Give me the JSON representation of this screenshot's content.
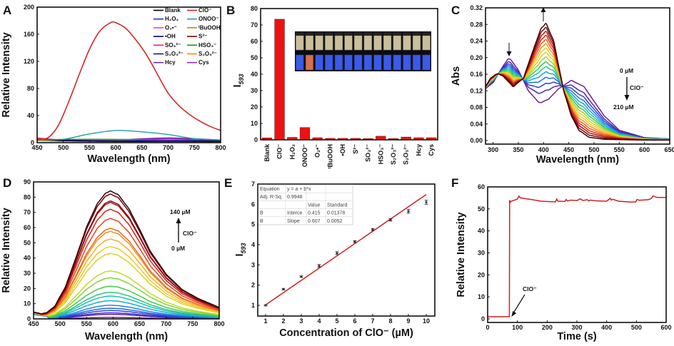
{
  "figure": {
    "panels": [
      "A",
      "B",
      "C",
      "D",
      "E",
      "F"
    ]
  },
  "chart_data": [
    {
      "panel": "A",
      "type": "line",
      "xlabel": "Wavelength (nm)",
      "ylabel": "Relative Intensity",
      "xlim": [
        450,
        800
      ],
      "ylim": [
        0,
        200
      ],
      "xticks": [
        450,
        500,
        550,
        600,
        650,
        700,
        750,
        800
      ],
      "yticks": [
        0,
        40,
        80,
        120,
        160,
        200
      ],
      "legend_position": "top-right",
      "legend": [
        "Blank",
        "ClO⁻",
        "H₂O₂",
        "ONOO⁻",
        "O₂•⁻",
        "ᵗBuOOH",
        "•OH",
        "S²⁻",
        "SO₃²⁻",
        "HSO₃⁻",
        "S₂O₃²⁻",
        "S₂O₅²⁻",
        "Hcy",
        "Cys"
      ],
      "series": [
        {
          "name": "ClO⁻",
          "color": "#d62728",
          "x": [
            450,
            470,
            490,
            510,
            530,
            550,
            570,
            590,
            600,
            620,
            640,
            660,
            680,
            700,
            720,
            740,
            760,
            780,
            800
          ],
          "values": [
            6,
            7,
            25,
            60,
            100,
            138,
            165,
            177,
            177,
            168,
            150,
            128,
            100,
            73,
            55,
            42,
            32,
            24,
            18
          ]
        },
        {
          "name": "ONOO⁻",
          "color": "#1f9e9e",
          "x": [
            450,
            500,
            550,
            600,
            650,
            700,
            750,
            800
          ],
          "values": [
            4,
            5,
            13,
            18,
            16,
            12,
            6,
            4
          ]
        },
        {
          "name": "Blank",
          "color": "#000000",
          "x": [
            450,
            500,
            600,
            700,
            800
          ],
          "values": [
            5,
            3,
            2,
            2,
            2
          ]
        },
        {
          "name": "H₂O₂",
          "color": "#2233cc",
          "x": [
            450,
            500,
            600,
            700,
            800
          ],
          "values": [
            6,
            4,
            3,
            4,
            3
          ]
        },
        {
          "name": "O₂•⁻",
          "color": "#ee33ee",
          "x": [
            450,
            500,
            600,
            700,
            800
          ],
          "values": [
            7,
            4,
            3,
            3,
            3
          ]
        },
        {
          "name": "ᵗBuOOH",
          "color": "#999900",
          "x": [
            450,
            500,
            600,
            700,
            800
          ],
          "values": [
            4,
            4,
            4,
            4,
            3
          ]
        },
        {
          "name": "•OH",
          "color": "#000066",
          "x": [
            450,
            500,
            600,
            700,
            800
          ],
          "values": [
            5,
            4,
            3,
            3,
            3
          ]
        },
        {
          "name": "S²⁻",
          "color": "#880000",
          "x": [
            450,
            500,
            600,
            700,
            800
          ],
          "values": [
            5,
            3,
            2,
            2,
            2
          ]
        },
        {
          "name": "SO₃²⁻",
          "color": "#ff1493",
          "x": [
            450,
            500,
            600,
            700,
            800
          ],
          "values": [
            6,
            3,
            3,
            4,
            3
          ]
        },
        {
          "name": "HSO₃⁻",
          "color": "#228b22",
          "x": [
            450,
            500,
            600,
            700,
            800
          ],
          "values": [
            4,
            5,
            5,
            4,
            3
          ]
        },
        {
          "name": "S₂O₃²⁻",
          "color": "#1111aa",
          "x": [
            450,
            500,
            600,
            700,
            800
          ],
          "values": [
            5,
            3,
            3,
            3,
            3
          ]
        },
        {
          "name": "S₂O₅²⁻",
          "color": "#ff8c00",
          "x": [
            450,
            500,
            600,
            700,
            800
          ],
          "values": [
            3,
            2,
            2,
            2,
            1
          ]
        },
        {
          "name": "Hcy",
          "color": "#7b2b9b",
          "x": [
            450,
            500,
            600,
            700,
            800
          ],
          "values": [
            6,
            3,
            4,
            7,
            4
          ]
        },
        {
          "name": "Cys",
          "color": "#9932cc",
          "x": [
            450,
            500,
            600,
            700,
            800
          ],
          "values": [
            7,
            4,
            4,
            6,
            4
          ]
        }
      ]
    },
    {
      "panel": "B",
      "type": "bar",
      "ylabel": "I593",
      "ylabel_main": "I",
      "ylabel_sub": "593",
      "ylim": [
        0,
        80
      ],
      "yticks": [
        0,
        10,
        20,
        30,
        40,
        50,
        60,
        70,
        80
      ],
      "categories": [
        "Blank",
        "ClO⁻",
        "H₂O₂",
        "ONOO⁻",
        "O₂•⁻",
        "ᵗBuOOH",
        "•OH",
        "S²⁻",
        "SO₃²⁻",
        "HSO₃⁻",
        "S₂O₃²⁻",
        "S₂O₅²⁻",
        "Hcy",
        "Cys"
      ],
      "values": [
        1.2,
        73.5,
        1.5,
        7.5,
        1.3,
        0.9,
        0.9,
        0.9,
        0.8,
        2.2,
        0.8,
        1.7,
        1.3,
        1.3
      ],
      "bar_color": "#ee1111",
      "inset": "photo of 14 vials under daylight (top) and UV lamp (bottom); ClO⁻ vial fluoresces orange"
    },
    {
      "panel": "C",
      "type": "line",
      "xlabel": "Wavelength (nm)",
      "ylabel": "Abs",
      "xlim": [
        285,
        650
      ],
      "ylim": [
        0,
        0.32
      ],
      "xticks": [
        300,
        350,
        400,
        450,
        500,
        550,
        600,
        650
      ],
      "yticks": [
        "0.00",
        "0.04",
        "0.08",
        "0.12",
        "0.16",
        "0.20",
        "0.24",
        "0.28",
        "0.32"
      ],
      "series_count": 16,
      "series_description": "ClO⁻ titration from 0 µM (purple) to 210 µM (dark red); peak at ~405 nm rises from 0.09 to 0.28; band at ~455 nm falls from 0.145; band at ~332 nm falls from 0.20",
      "start_curve": {
        "x": [
          285,
          300,
          320,
          332,
          350,
          370,
          392,
          410,
          430,
          455,
          480,
          500,
          520,
          550,
          600,
          650
        ],
        "values": [
          0.125,
          0.14,
          0.18,
          0.2,
          0.17,
          0.12,
          0.09,
          0.1,
          0.125,
          0.145,
          0.13,
          0.095,
          0.06,
          0.025,
          0.007,
          0.004
        ]
      },
      "end_curve": {
        "x": [
          285,
          295,
          308,
          320,
          340,
          360,
          380,
          395,
          405,
          420,
          440,
          455,
          470,
          490,
          520,
          600,
          650
        ],
        "values": [
          0.13,
          0.15,
          0.162,
          0.155,
          0.13,
          0.15,
          0.22,
          0.27,
          0.282,
          0.24,
          0.12,
          0.06,
          0.025,
          0.008,
          0.003,
          0.001,
          0.001
        ]
      },
      "annotations": {
        "top": "0 µM",
        "bottom": "210 µM",
        "analyte": "ClO⁻"
      }
    },
    {
      "panel": "D",
      "type": "line",
      "xlabel": "Wavelength (nm)",
      "ylabel": "Relative Intensity",
      "xlim": [
        450,
        800
      ],
      "ylim": [
        0,
        90
      ],
      "xticks": [
        450,
        500,
        550,
        600,
        650,
        700,
        750,
        800
      ],
      "yticks": [
        0,
        10,
        20,
        30,
        40,
        50,
        60,
        70,
        80,
        90
      ],
      "peak_nm": 595,
      "peak_values": [
        1,
        3,
        4,
        5.5,
        7,
        9,
        12,
        15,
        17.5,
        21.5,
        27,
        31.5,
        43,
        47.5,
        52.5,
        57.5,
        59.5,
        66,
        72,
        76.5,
        77.5,
        82,
        84
      ],
      "annotations": {
        "top": "140 µM",
        "bottom": "0 µM",
        "analyte": "ClO⁻"
      }
    },
    {
      "panel": "E",
      "type": "scatter",
      "xlabel": "Concentration of ClO⁻ (µM)",
      "ylabel": "I593",
      "ylabel_main": "I",
      "ylabel_sub": "593",
      "xlim": [
        0.5,
        10.5
      ],
      "ylim": [
        0.5,
        7
      ],
      "xticks": [
        1,
        2,
        3,
        4,
        5,
        6,
        7,
        8,
        9,
        10
      ],
      "yticks": [
        1,
        2,
        3,
        4,
        5,
        6,
        7
      ],
      "x": [
        1,
        2,
        3,
        4,
        5,
        6,
        7,
        8,
        9,
        10
      ],
      "values": [
        1.0,
        1.8,
        2.42,
        2.95,
        3.58,
        4.15,
        4.75,
        5.23,
        5.65,
        6.1
      ],
      "errors": [
        0.03,
        0.04,
        0.04,
        0.07,
        0.07,
        0.05,
        0.05,
        0.06,
        0.09,
        0.1
      ],
      "fit": {
        "intercept": 0.415,
        "slope": 0.607,
        "x_range": [
          1,
          10
        ],
        "color": "#cc2222"
      },
      "fit_table": {
        "rows": [
          [
            "Equation",
            "y = a + b*x",
            "",
            ""
          ],
          [
            "Adj. R-Sq",
            "0.9948",
            "",
            ""
          ],
          [
            "",
            "",
            "Value",
            "Standard"
          ],
          [
            "B",
            "Interce",
            "0.415",
            "0.01378"
          ],
          [
            "B",
            "Slope",
            "0.607",
            "0.0052"
          ]
        ]
      }
    },
    {
      "panel": "F",
      "type": "line",
      "xlabel": "Time (s)",
      "ylabel": "Relative Intensity",
      "xlim": [
        0,
        600
      ],
      "ylim": [
        0,
        60
      ],
      "xticks": [
        0,
        100,
        200,
        300,
        400,
        500,
        600
      ],
      "yticks": [
        0,
        10,
        20,
        30,
        40,
        50,
        60
      ],
      "series": [
        {
          "name": "intensity",
          "color": "#cc2222",
          "x": [
            0,
            73,
            74,
            76,
            80,
            100,
            105,
            110,
            150,
            180,
            228,
            232,
            236,
            260,
            264,
            268,
            280,
            300,
            312,
            320,
            335,
            340,
            345,
            360,
            380,
            400,
            412,
            416,
            420,
            440,
            480,
            498,
            502,
            510,
            540,
            550,
            556,
            570,
            600
          ],
          "values": [
            1,
            1,
            54,
            53,
            53.5,
            54.5,
            55.8,
            55,
            54.2,
            53.5,
            53.2,
            54.5,
            53.5,
            53.4,
            54.3,
            53.6,
            54,
            53.8,
            54.6,
            53.8,
            54.2,
            53.6,
            54,
            53.7,
            53.6,
            53.5,
            54.8,
            54,
            54.4,
            53.5,
            53.1,
            53.2,
            54.3,
            53.9,
            54.2,
            54.7,
            55.9,
            55.2,
            55.2
          ]
        }
      ],
      "annotations": {
        "label": "ClO⁻",
        "arrow_to_x": 75
      }
    }
  ]
}
